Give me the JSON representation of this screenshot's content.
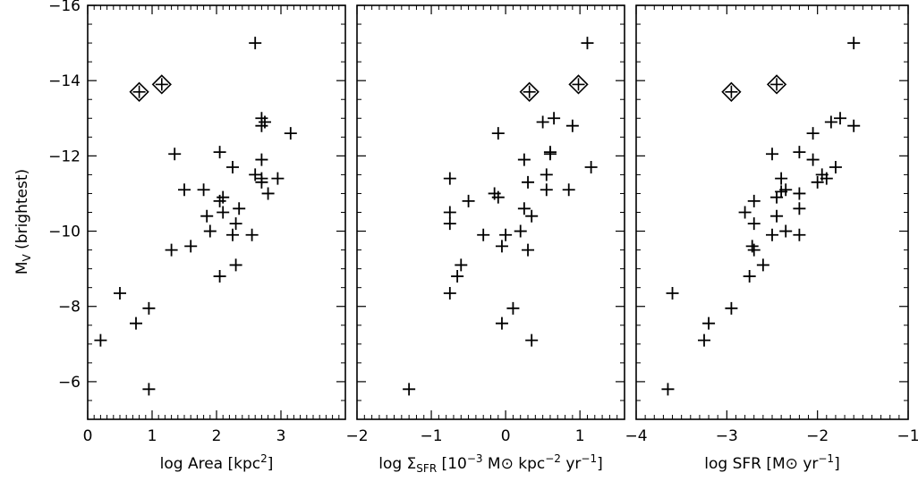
{
  "figure": {
    "ylabel_main": "M",
    "ylabel_sub": "V",
    "ylabel_rest": " (brightest)"
  },
  "chart_data": [
    {
      "type": "scatter",
      "xlabel_parts": [
        {
          "t": "log Area [kpc",
          "s": ""
        },
        {
          "t": "2",
          "s": "sup"
        },
        {
          "t": "]",
          "s": ""
        }
      ],
      "xlim": [
        0,
        4
      ],
      "ylim": [
        -5,
        -16
      ],
      "xticks_major": [
        0,
        1,
        2,
        3
      ],
      "xtick_labels": [
        "0",
        "1",
        "2",
        "3"
      ],
      "xticks_minor_step": 0.1,
      "yticks_major": [
        -6,
        -8,
        -10,
        -12,
        -14,
        -16
      ],
      "ytick_labels": [
        "−6",
        "−8",
        "−10",
        "−12",
        "−14",
        "−16"
      ],
      "yticks_minor_step": 0.5,
      "points": [
        [
          2.6,
          -15.0
        ],
        [
          2.7,
          -13.0
        ],
        [
          2.7,
          -12.8
        ],
        [
          2.75,
          -12.9
        ],
        [
          3.15,
          -12.6
        ],
        [
          1.35,
          -12.05
        ],
        [
          2.05,
          -12.1
        ],
        [
          2.25,
          -11.7
        ],
        [
          2.7,
          -11.9
        ],
        [
          2.6,
          -11.5
        ],
        [
          2.7,
          -11.4
        ],
        [
          2.7,
          -11.3
        ],
        [
          2.95,
          -11.4
        ],
        [
          2.8,
          -11.0
        ],
        [
          1.5,
          -11.1
        ],
        [
          1.8,
          -11.1
        ],
        [
          2.1,
          -10.9
        ],
        [
          2.05,
          -10.8
        ],
        [
          2.35,
          -10.6
        ],
        [
          2.1,
          -10.5
        ],
        [
          1.85,
          -10.4
        ],
        [
          2.3,
          -10.2
        ],
        [
          1.9,
          -10.0
        ],
        [
          2.25,
          -9.9
        ],
        [
          2.55,
          -9.9
        ],
        [
          1.6,
          -9.6
        ],
        [
          1.3,
          -9.5
        ],
        [
          2.3,
          -9.1
        ],
        [
          2.05,
          -8.8
        ],
        [
          0.5,
          -8.35
        ],
        [
          0.95,
          -7.95
        ],
        [
          0.75,
          -7.55
        ],
        [
          0.2,
          -7.1
        ],
        [
          0.95,
          -5.8
        ]
      ],
      "diamonds": [
        [
          0.8,
          -13.7
        ],
        [
          1.15,
          -13.9
        ]
      ]
    },
    {
      "type": "scatter",
      "xlabel_parts": [
        {
          "t": "log Σ",
          "s": ""
        },
        {
          "t": "SFR",
          "s": "sub"
        },
        {
          "t": " [10",
          "s": ""
        },
        {
          "t": "−3",
          "s": "sup"
        },
        {
          "t": " M⊙ kpc",
          "s": ""
        },
        {
          "t": "−2",
          "s": "sup"
        },
        {
          "t": " yr",
          "s": ""
        },
        {
          "t": "−1",
          "s": "sup"
        },
        {
          "t": "]",
          "s": ""
        }
      ],
      "xlim": [
        -2,
        1.6
      ],
      "ylim": [
        -5,
        -16
      ],
      "xticks_major": [
        -2,
        -1,
        0,
        1
      ],
      "xtick_labels": [
        "−2",
        "−1",
        "0",
        "1"
      ],
      "xticks_minor_step": 0.1,
      "yticks_major": [
        -6,
        -8,
        -10,
        -12,
        -14,
        -16
      ],
      "ytick_labels": [
        "",
        "",
        "",
        "",
        "",
        ""
      ],
      "yticks_minor_step": 0.5,
      "points": [
        [
          1.1,
          -15.0
        ],
        [
          0.5,
          -12.9
        ],
        [
          0.65,
          -13.0
        ],
        [
          0.9,
          -12.8
        ],
        [
          -0.1,
          -12.6
        ],
        [
          0.6,
          -12.1
        ],
        [
          0.6,
          -12.05
        ],
        [
          0.25,
          -11.9
        ],
        [
          1.15,
          -11.7
        ],
        [
          -0.75,
          -11.4
        ],
        [
          0.55,
          -11.5
        ],
        [
          0.3,
          -11.3
        ],
        [
          0.55,
          -11.1
        ],
        [
          0.85,
          -11.1
        ],
        [
          -0.15,
          -11.0
        ],
        [
          -0.1,
          -10.9
        ],
        [
          -0.5,
          -10.8
        ],
        [
          0.25,
          -10.6
        ],
        [
          -0.75,
          -10.5
        ],
        [
          0.35,
          -10.4
        ],
        [
          -0.75,
          -10.2
        ],
        [
          0.2,
          -10.0
        ],
        [
          -0.3,
          -9.9
        ],
        [
          0.0,
          -9.9
        ],
        [
          -0.05,
          -9.6
        ],
        [
          0.3,
          -9.5
        ],
        [
          -0.6,
          -9.1
        ],
        [
          -0.65,
          -8.8
        ],
        [
          -0.75,
          -8.35
        ],
        [
          0.1,
          -7.95
        ],
        [
          -0.05,
          -7.55
        ],
        [
          0.35,
          -7.1
        ],
        [
          -1.3,
          -5.8
        ]
      ],
      "diamonds": [
        [
          0.32,
          -13.7
        ],
        [
          0.98,
          -13.9
        ]
      ]
    },
    {
      "type": "scatter",
      "xlabel_parts": [
        {
          "t": "log SFR [M⊙ yr",
          "s": ""
        },
        {
          "t": "−1",
          "s": "sup"
        },
        {
          "t": "]",
          "s": ""
        }
      ],
      "xlim": [
        -4,
        -1
      ],
      "ylim": [
        -5,
        -16
      ],
      "xticks_major": [
        -4,
        -3,
        -2,
        -1
      ],
      "xtick_labels": [
        "−4",
        "−3",
        "−2",
        "−1"
      ],
      "xticks_minor_step": 0.1,
      "yticks_major": [
        -6,
        -8,
        -10,
        -12,
        -14,
        -16
      ],
      "ytick_labels": [
        "",
        "",
        "",
        "",
        "",
        ""
      ],
      "yticks_minor_step": 0.5,
      "points": [
        [
          -1.6,
          -15.0
        ],
        [
          -1.75,
          -13.0
        ],
        [
          -1.85,
          -12.9
        ],
        [
          -1.6,
          -12.8
        ],
        [
          -2.05,
          -12.6
        ],
        [
          -2.2,
          -12.1
        ],
        [
          -2.5,
          -12.05
        ],
        [
          -2.05,
          -11.9
        ],
        [
          -1.8,
          -11.7
        ],
        [
          -2.4,
          -11.4
        ],
        [
          -1.95,
          -11.5
        ],
        [
          -1.9,
          -11.4
        ],
        [
          -2.0,
          -11.3
        ],
        [
          -2.35,
          -11.1
        ],
        [
          -2.4,
          -11.05
        ],
        [
          -2.2,
          -11.0
        ],
        [
          -2.45,
          -10.9
        ],
        [
          -2.7,
          -10.8
        ],
        [
          -2.2,
          -10.6
        ],
        [
          -2.8,
          -10.5
        ],
        [
          -2.45,
          -10.4
        ],
        [
          -2.7,
          -10.2
        ],
        [
          -2.35,
          -10.0
        ],
        [
          -2.5,
          -9.9
        ],
        [
          -2.2,
          -9.9
        ],
        [
          -2.72,
          -9.6
        ],
        [
          -2.7,
          -9.5
        ],
        [
          -2.6,
          -9.1
        ],
        [
          -2.75,
          -8.8
        ],
        [
          -3.6,
          -8.35
        ],
        [
          -2.95,
          -7.95
        ],
        [
          -3.2,
          -7.55
        ],
        [
          -3.25,
          -7.1
        ],
        [
          -3.65,
          -5.8
        ]
      ],
      "diamonds": [
        [
          -2.95,
          -13.7
        ],
        [
          -2.45,
          -13.9
        ]
      ]
    }
  ]
}
